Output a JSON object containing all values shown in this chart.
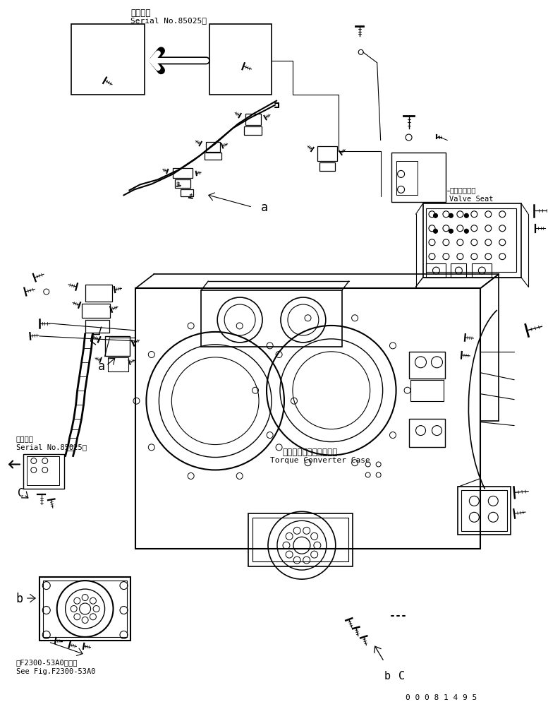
{
  "bg_color": "#ffffff",
  "lc": "#000000",
  "fw": 7.77,
  "fh": 9.95,
  "dpi": 100,
  "title1": "適用号機",
  "title2": "Serial No.85025～",
  "label_a": "a",
  "label_b_left": "b",
  "label_C_left": "C",
  "label_b_bot": "b",
  "label_C_bot": "C",
  "torque_jp": "トルクコンバータケース",
  "torque_en": "Torque Converter Case",
  "valve_jp": "バルブシート",
  "valve_en": "Valve Seat",
  "serial2_1": "適用号機",
  "serial2_2": "Serial No.85025～",
  "fig_ref1": "第F2300-53A0図参照",
  "fig_ref2": "See Fig.F2300-53A0",
  "doc_id": "0 0 0 8 1 4 9 5"
}
